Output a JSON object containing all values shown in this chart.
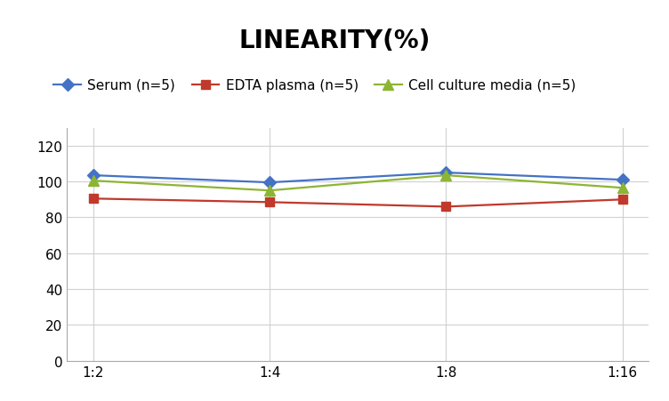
{
  "title": "LINEARITY(%)",
  "x_labels": [
    "1:2",
    "1:4",
    "1:8",
    "1:16"
  ],
  "series": [
    {
      "label": "Serum (n=5)",
      "values": [
        103.5,
        99.5,
        105.0,
        101.0
      ],
      "color": "#4472C4",
      "marker": "D",
      "marker_size": 7
    },
    {
      "label": "EDTA plasma (n=5)",
      "values": [
        90.5,
        88.5,
        86.0,
        90.0
      ],
      "color": "#C0392B",
      "marker": "s",
      "marker_size": 7
    },
    {
      "label": "Cell culture media (n=5)",
      "values": [
        100.5,
        95.0,
        103.5,
        96.5
      ],
      "color": "#8DB534",
      "marker": "^",
      "marker_size": 8
    }
  ],
  "ylim": [
    0,
    130
  ],
  "yticks": [
    0,
    20,
    40,
    60,
    80,
    100,
    120
  ],
  "background_color": "#ffffff",
  "title_fontsize": 20,
  "legend_fontsize": 11,
  "tick_fontsize": 11,
  "grid_color": "#d0d0d0",
  "line_width": 1.6
}
